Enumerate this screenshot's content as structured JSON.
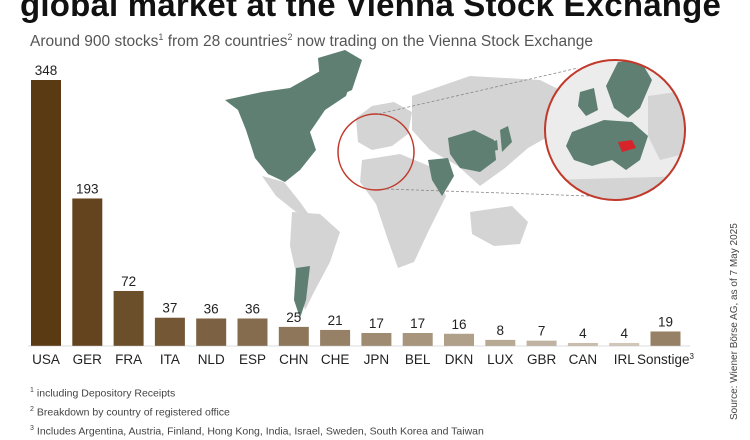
{
  "header": {
    "title": "global market at the Vienna Stock Exchange",
    "subtitle_a": "Around 900 stocks",
    "subtitle_sup1": "1",
    "subtitle_b": " from 28 countries",
    "subtitle_sup2": "2",
    "subtitle_c": " now trading on the Vienna Stock Exchange"
  },
  "colors": {
    "bar_top": "#5a3a12",
    "bar_bottom": "#d2c7b9",
    "map_highlight": "#5e7f72",
    "map_land": "#d4d4d4",
    "austria": "#d6242a",
    "circle_border": "#c0392b"
  },
  "chart_data": {
    "type": "bar",
    "categories": [
      "USA",
      "GER",
      "FRA",
      "ITA",
      "NLD",
      "ESP",
      "CHN",
      "CHE",
      "JPN",
      "BEL",
      "DKN",
      "LUX",
      "GBR",
      "CAN",
      "IRL",
      "Sonstige"
    ],
    "last_category_sup": "3",
    "values": [
      348,
      193,
      72,
      37,
      36,
      36,
      25,
      21,
      17,
      17,
      16,
      8,
      7,
      4,
      4,
      19
    ],
    "ylim": [
      0,
      348
    ],
    "grid": false,
    "legend": "none"
  },
  "footnotes": [
    {
      "mark": "1",
      "text": "including Depository Receipts"
    },
    {
      "mark": "2",
      "text": "Breakdown by country of registered office"
    },
    {
      "mark": "3",
      "text": "Includes Argentina, Austria, Finland, Hong Kong, India, Israel, Sweden, South Korea and Taiwan"
    }
  ],
  "source": "Source: Wiener Börse AG, as of 7 May 2025"
}
